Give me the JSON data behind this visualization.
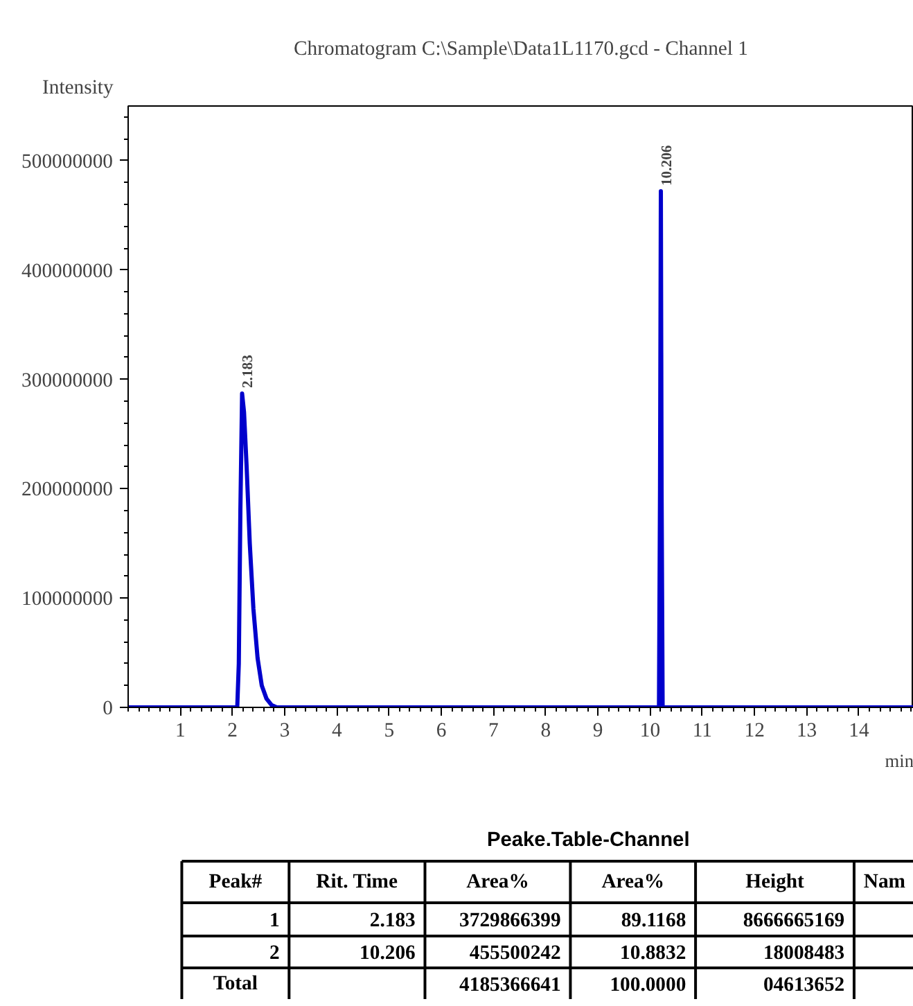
{
  "chart_data": [
    {
      "type": "line",
      "title": "Chromatogram C:\\Sample\\Data1L1170.gcd - Channel 1",
      "xlabel": "min",
      "ylabel": "Intensity",
      "series": [
        {
          "color": "#0000cc",
          "x": [
            0,
            1,
            2.09,
            2.12,
            2.15,
            2.183,
            2.22,
            2.27,
            2.33,
            2.4,
            2.48,
            2.56,
            2.65,
            2.75,
            2.85,
            3.0,
            6,
            10.17,
            10.19,
            10.206,
            10.22,
            10.24,
            12,
            15.05
          ],
          "values": [
            0,
            0,
            0,
            40000000,
            180000000,
            287000000,
            270000000,
            220000000,
            150000000,
            90000000,
            45000000,
            20000000,
            8000000,
            2000000,
            0,
            0,
            0,
            0,
            200000000,
            472000000,
            200000000,
            0,
            0,
            0
          ]
        }
      ],
      "annotations": [
        {
          "text": "2.183",
          "x": 2.183,
          "y": 287000000
        },
        {
          "text": "10.206",
          "x": 10.206,
          "y": 472000000
        }
      ],
      "xlim": [
        0,
        15.05
      ],
      "ylim": [
        0,
        550000000
      ],
      "xticks": [
        1,
        2,
        3,
        4,
        5,
        6,
        7,
        8,
        9,
        10,
        11,
        12,
        13,
        14
      ],
      "yticks": [
        0,
        100000000,
        200000000,
        300000000,
        400000000,
        500000000
      ],
      "grid": false,
      "line_style": "solid",
      "marker": "none"
    },
    {
      "type": "other",
      "title": "Peake.Table-Channel",
      "categories": [
        "Peak#",
        "Rit. Time",
        "Area%",
        "Area%",
        "Height",
        "Nam"
      ],
      "annotations": [
        "1",
        "2.183",
        "3729866399",
        "89.1168",
        "8666665169",
        null,
        "2",
        "10.206",
        "455500242",
        "10.8832",
        "18008483",
        null,
        "Total",
        null,
        "4185366641",
        "100.0000",
        "04613652",
        null
      ]
    }
  ]
}
